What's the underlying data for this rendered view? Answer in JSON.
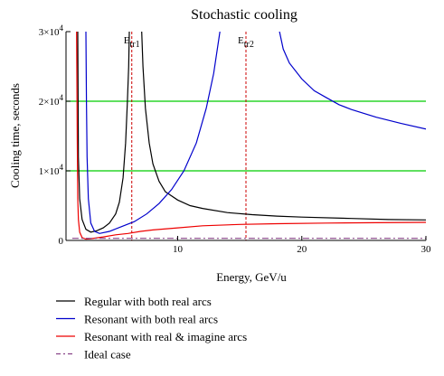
{
  "chart_data": {
    "type": "line",
    "title": "Stochastic cooling",
    "xlabel": "Energy, GeV/u",
    "ylabel": "Cooling time, seconds",
    "xlim": [
      1,
      30
    ],
    "ylim": [
      0,
      30000
    ],
    "x_ticks": [
      10,
      20,
      30
    ],
    "x_tick_labels": [
      "10",
      "20",
      "30"
    ],
    "y_ticks": [
      0,
      10000,
      20000,
      30000
    ],
    "y_tick_labels": [
      {
        "base": "0",
        "exp": ""
      },
      {
        "base": "1×10",
        "exp": "4"
      },
      {
        "base": "2×10",
        "exp": "4"
      },
      {
        "base": "3×10",
        "exp": "4"
      }
    ],
    "hlines": [
      {
        "y": 10000,
        "color": "#00cc00"
      },
      {
        "y": 20000,
        "color": "#00cc00"
      }
    ],
    "vlines": [
      {
        "x": 6.3,
        "color": "#cc0000",
        "label": "E",
        "sub": "tr1"
      },
      {
        "x": 15.5,
        "color": "#cc0000",
        "label": "E",
        "sub": "tr2"
      }
    ],
    "legend_position": "bottom",
    "series": [
      {
        "name": "Regular with both real arcs",
        "color": "#000000",
        "dash": "",
        "points": [
          [
            1.95,
            30000
          ],
          [
            2.0,
            12000
          ],
          [
            2.1,
            6000
          ],
          [
            2.3,
            3000
          ],
          [
            2.6,
            1600
          ],
          [
            3.0,
            1200
          ],
          [
            3.5,
            1400
          ],
          [
            4.0,
            1800
          ],
          [
            4.5,
            2500
          ],
          [
            5.0,
            3800
          ],
          [
            5.3,
            5500
          ],
          [
            5.6,
            9000
          ],
          [
            5.8,
            14000
          ],
          [
            5.95,
            20000
          ],
          [
            6.05,
            25000
          ],
          [
            6.1,
            30000
          ],
          null,
          [
            7.1,
            30000
          ],
          [
            7.2,
            25000
          ],
          [
            7.4,
            19000
          ],
          [
            7.7,
            14000
          ],
          [
            8.0,
            11000
          ],
          [
            8.5,
            8500
          ],
          [
            9.0,
            7000
          ],
          [
            10.0,
            5800
          ],
          [
            11.0,
            5000
          ],
          [
            12.0,
            4600
          ],
          [
            14.0,
            4000
          ],
          [
            16.0,
            3700
          ],
          [
            18.0,
            3500
          ],
          [
            20.0,
            3350
          ],
          [
            24.0,
            3150
          ],
          [
            27.0,
            3000
          ],
          [
            30.0,
            2950
          ]
        ]
      },
      {
        "name": "Resonant with both real arcs",
        "color": "#0000cc",
        "dash": "",
        "points": [
          [
            2.6,
            30000
          ],
          [
            2.65,
            20000
          ],
          [
            2.7,
            12000
          ],
          [
            2.8,
            6000
          ],
          [
            3.0,
            2500
          ],
          [
            3.3,
            1300
          ],
          [
            3.7,
            1000
          ],
          [
            4.5,
            1300
          ],
          [
            5.5,
            2000
          ],
          [
            6.5,
            2700
          ],
          [
            7.5,
            3800
          ],
          [
            8.5,
            5300
          ],
          [
            9.5,
            7300
          ],
          [
            10.5,
            10000
          ],
          [
            11.5,
            14000
          ],
          [
            12.3,
            19000
          ],
          [
            12.9,
            24000
          ],
          [
            13.4,
            30000
          ],
          null,
          [
            18.2,
            30000
          ],
          [
            18.5,
            27500
          ],
          [
            19.0,
            25500
          ],
          [
            20.0,
            23200
          ],
          [
            21.0,
            21500
          ],
          [
            22.0,
            20500
          ],
          [
            23.0,
            19500
          ],
          [
            24.0,
            18800
          ],
          [
            26.0,
            17700
          ],
          [
            28.0,
            16800
          ],
          [
            30.0,
            16000
          ]
        ]
      },
      {
        "name": "Resonant with real & imagine arcs",
        "color": "#ee0000",
        "dash": "",
        "points": [
          [
            1.85,
            30000
          ],
          [
            1.9,
            15000
          ],
          [
            1.95,
            6000
          ],
          [
            2.0,
            3000
          ],
          [
            2.1,
            1200
          ],
          [
            2.3,
            400
          ],
          [
            2.6,
            200
          ],
          [
            3.0,
            250
          ],
          [
            4.0,
            500
          ],
          [
            5.0,
            800
          ],
          [
            6.0,
            1000
          ],
          [
            7.0,
            1300
          ],
          [
            8.0,
            1500
          ],
          [
            10.0,
            1800
          ],
          [
            12.0,
            2100
          ],
          [
            15.0,
            2300
          ],
          [
            18.0,
            2400
          ],
          [
            22.0,
            2500
          ],
          [
            26.0,
            2550
          ],
          [
            30.0,
            2600
          ]
        ]
      },
      {
        "name": "Ideal case",
        "color": "#884488",
        "dash": "7,3,2,3",
        "points": [
          [
            1.5,
            300
          ],
          [
            30.0,
            300
          ]
        ]
      }
    ]
  }
}
